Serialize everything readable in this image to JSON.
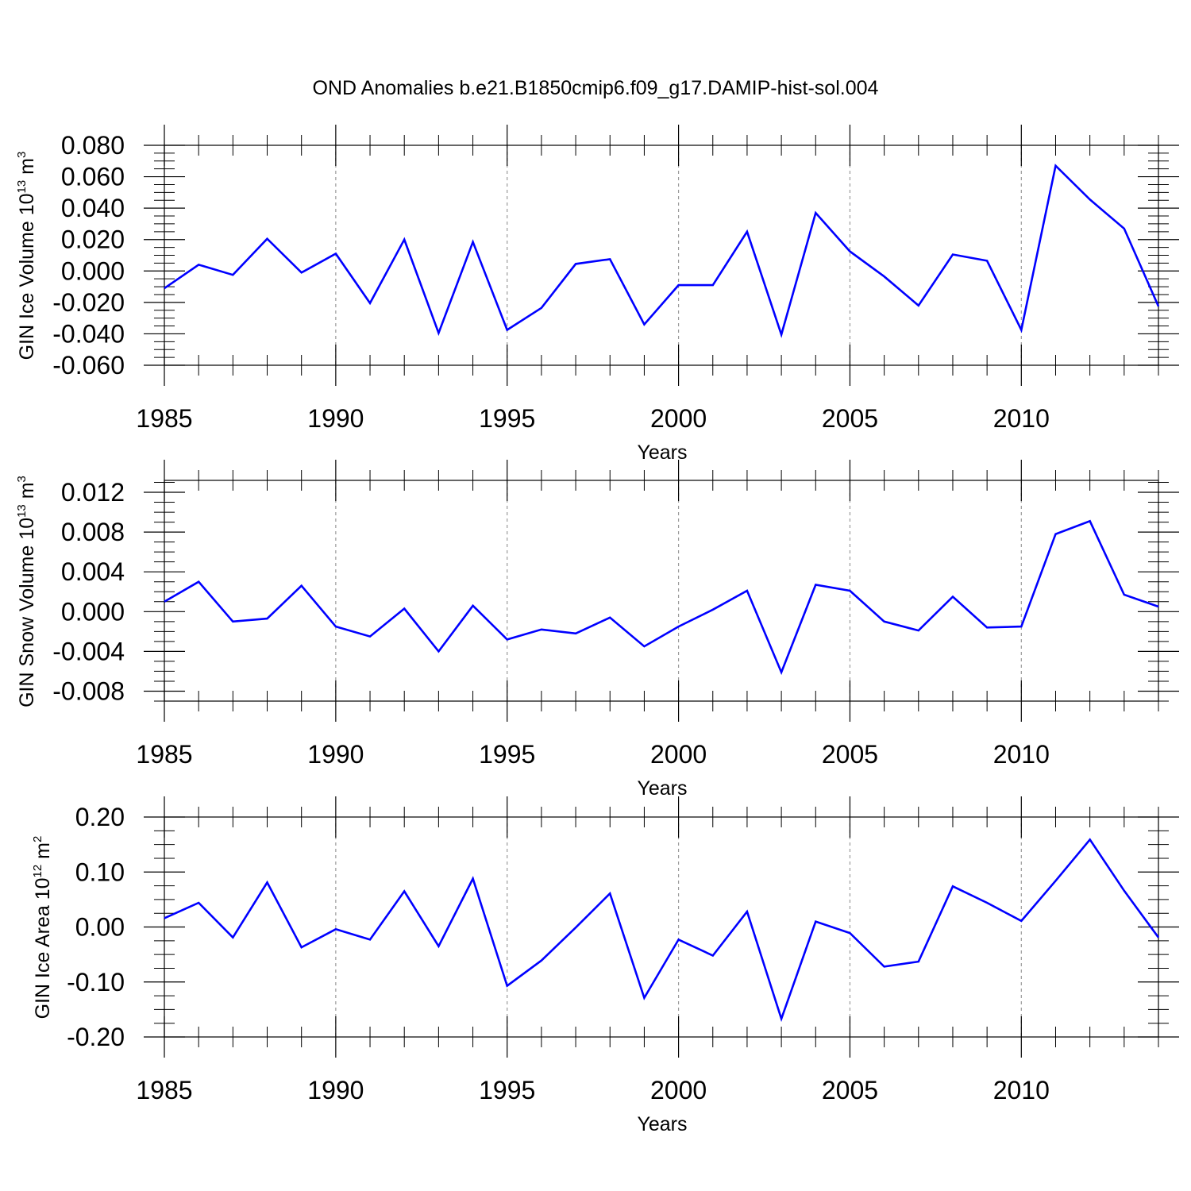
{
  "title": "OND Anomalies b.e21.B1850cmip6.f09_g17.DAMIP-hist-sol.004",
  "chart_data": [
    {
      "type": "line",
      "ylabel": "GIN Ice Volume 10",
      "ylabel_exp": "13",
      "ylabel_unit": " m",
      "ylabel_unit_exp": "3",
      "xlabel": "Years",
      "xlim": [
        1985,
        2014
      ],
      "ylim": [
        -0.06,
        0.08
      ],
      "yticks": [
        -0.06,
        -0.04,
        -0.02,
        0.0,
        0.02,
        0.04,
        0.06,
        0.08
      ],
      "ytick_labels": [
        "-0.060",
        "-0.040",
        "-0.020",
        "0.000",
        "0.020",
        "0.040",
        "0.060",
        "0.080"
      ],
      "yminor_step": 0.005,
      "xticks": [
        1985,
        1990,
        1995,
        2000,
        2005,
        2010
      ],
      "xtick_labels": [
        "1985",
        "1990",
        "1995",
        "2000",
        "2005",
        "2010"
      ],
      "grid": "dashed vertical at major x ticks",
      "color": "#0000ff",
      "x": [
        1985,
        1986,
        1987,
        1988,
        1989,
        1990,
        1991,
        1992,
        1993,
        1994,
        1995,
        1996,
        1997,
        1998,
        1999,
        2000,
        2001,
        2002,
        2003,
        2004,
        2005,
        2006,
        2007,
        2008,
        2009,
        2010,
        2011,
        2012,
        2013,
        2014
      ],
      "y": [
        -0.011,
        0.004,
        -0.0025,
        0.0205,
        -0.001,
        0.011,
        -0.0205,
        0.02,
        -0.0395,
        0.0185,
        -0.0375,
        -0.0235,
        0.0045,
        0.0075,
        -0.034,
        -0.009,
        -0.009,
        0.025,
        -0.0405,
        0.037,
        0.0125,
        -0.0035,
        -0.022,
        0.0105,
        0.0065,
        -0.0375,
        0.067,
        0.0455,
        0.027,
        -0.0225
      ]
    },
    {
      "type": "line",
      "ylabel": "GIN Snow Volume 10",
      "ylabel_exp": "13",
      "ylabel_unit": " m",
      "ylabel_unit_exp": "3",
      "xlabel": "Years",
      "xlim": [
        1985,
        2014
      ],
      "ylim": [
        -0.009,
        0.0132
      ],
      "yticks": [
        -0.008,
        -0.004,
        0.0,
        0.004,
        0.008,
        0.012
      ],
      "ytick_labels": [
        "-0.008",
        "-0.004",
        "0.000",
        "0.004",
        "0.008",
        "0.012"
      ],
      "yminor_step": 0.001,
      "xticks": [
        1985,
        1990,
        1995,
        2000,
        2005,
        2010
      ],
      "xtick_labels": [
        "1985",
        "1990",
        "1995",
        "2000",
        "2005",
        "2010"
      ],
      "grid": "dashed vertical at major x ticks",
      "color": "#0000ff",
      "x": [
        1985,
        1986,
        1987,
        1988,
        1989,
        1990,
        1991,
        1992,
        1993,
        1994,
        1995,
        1996,
        1997,
        1998,
        1999,
        2000,
        2001,
        2002,
        2003,
        2004,
        2005,
        2006,
        2007,
        2008,
        2009,
        2010,
        2011,
        2012,
        2013,
        2014
      ],
      "y": [
        0.001,
        0.003,
        -0.001,
        -0.0007,
        0.0026,
        -0.0015,
        -0.0025,
        0.0003,
        -0.004,
        0.0006,
        -0.0028,
        -0.0018,
        -0.0022,
        -0.0006,
        -0.0035,
        -0.0015,
        0.0002,
        0.0021,
        -0.0061,
        0.0027,
        0.0021,
        -0.001,
        -0.0019,
        0.0015,
        -0.0016,
        -0.0015,
        0.0078,
        0.0091,
        0.0017,
        0.0005
      ]
    },
    {
      "type": "line",
      "ylabel": "GIN Ice Area 10",
      "ylabel_exp": "12",
      "ylabel_unit": " m",
      "ylabel_unit_exp": "2",
      "xlabel": "Years",
      "xlim": [
        1985,
        2014
      ],
      "ylim": [
        -0.2,
        0.2
      ],
      "yticks": [
        -0.2,
        -0.1,
        0.0,
        0.1,
        0.2
      ],
      "ytick_labels": [
        "-0.20",
        "-0.10",
        "0.00",
        "0.10",
        "0.20"
      ],
      "yminor_step": 0.025,
      "xticks": [
        1985,
        1990,
        1995,
        2000,
        2005,
        2010
      ],
      "xtick_labels": [
        "1985",
        "1990",
        "1995",
        "2000",
        "2005",
        "2010"
      ],
      "grid": "dashed vertical at major x ticks",
      "color": "#0000ff",
      "x": [
        1985,
        1986,
        1987,
        1988,
        1989,
        1990,
        1991,
        1992,
        1993,
        1994,
        1995,
        1996,
        1997,
        1998,
        1999,
        2000,
        2001,
        2002,
        2003,
        2004,
        2005,
        2006,
        2007,
        2008,
        2009,
        2010,
        2011,
        2012,
        2013,
        2014
      ],
      "y": [
        0.016,
        0.044,
        -0.019,
        0.081,
        -0.037,
        -0.004,
        -0.023,
        0.065,
        -0.035,
        0.088,
        -0.107,
        -0.061,
        -0.001,
        0.061,
        -0.129,
        -0.023,
        -0.052,
        0.028,
        -0.167,
        0.01,
        -0.011,
        -0.072,
        -0.063,
        0.074,
        0.044,
        0.011,
        0.084,
        0.159,
        0.066,
        -0.019
      ]
    }
  ]
}
